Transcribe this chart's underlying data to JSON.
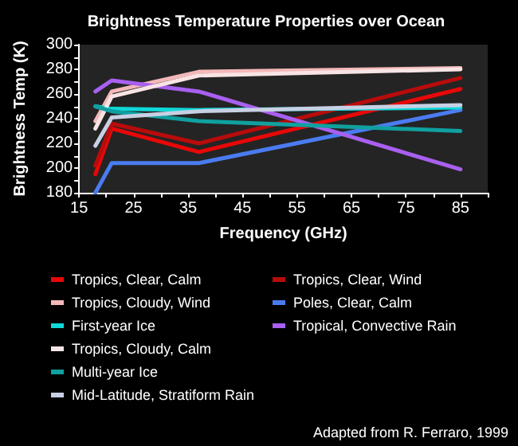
{
  "chart_data": {
    "type": "line",
    "title": "Brightness Temperature Properties over Ocean",
    "xlabel": "Frequency (GHz)",
    "ylabel": "Brightness Temp (K)",
    "annotations": [
      "Adapted from R. Ferraro, 1999"
    ],
    "x": [
      18,
      21,
      37,
      85
    ],
    "xlim": [
      15,
      90
    ],
    "xticks": [
      15,
      {
        "value": 20,
        "label": null
      },
      25,
      {
        "value": 30,
        "label": null
      },
      35,
      {
        "value": 40,
        "label": null
      },
      45,
      {
        "value": 50,
        "label": null
      },
      55,
      {
        "value": 60,
        "label": null
      },
      65,
      {
        "value": 70,
        "label": null
      },
      75,
      {
        "value": 80,
        "label": null
      },
      85,
      {
        "value": 90,
        "label": null
      }
    ],
    "ylim": [
      180,
      300
    ],
    "yticks": [
      180,
      {
        "value": 190,
        "label": null
      },
      200,
      {
        "value": 210,
        "label": null
      },
      220,
      {
        "value": 230,
        "label": null
      },
      240,
      {
        "value": 250,
        "label": null
      },
      260,
      {
        "value": 270,
        "label": null
      },
      280,
      {
        "value": 290,
        "label": null
      },
      300
    ],
    "grid": false,
    "legend": "bottom",
    "marker": "none",
    "line_style": "solid",
    "series": [
      {
        "name": "Tropics, Clear, Calm",
        "color": "#e80808",
        "values": [
          195,
          232,
          213,
          264
        ]
      },
      {
        "name": "Tropics, Clear, Wind",
        "color": "#b80c0c",
        "values": [
          202,
          236,
          220,
          273
        ]
      },
      {
        "name": "Tropics, Cloudy, Wind",
        "color": "#f4b8b8",
        "values": [
          238,
          262,
          278,
          281
        ]
      },
      {
        "name": "Poles, Clear, Calm",
        "color": "#4a7cf0",
        "values": [
          180,
          204,
          204,
          247
        ]
      },
      {
        "name": "First-year Ice",
        "color": "#10d8d8",
        "values": [
          250,
          248,
          247,
          249
        ]
      },
      {
        "name": "Tropical, Convective Rain",
        "color": "#a860f0",
        "values": [
          262,
          271,
          262,
          199
        ]
      },
      {
        "name": "Tropics, Cloudy, Calm",
        "color": "#f8e4e4",
        "values": [
          232,
          258,
          275,
          280
        ]
      },
      {
        "name": "Multi-year Ice",
        "color": "#10a0a0",
        "values": [
          250,
          246,
          238,
          230
        ]
      },
      {
        "name": "Mid-Latitude, Stratiform Rain",
        "color": "#c8d0e4",
        "values": [
          218,
          241,
          246,
          251
        ]
      }
    ]
  }
}
